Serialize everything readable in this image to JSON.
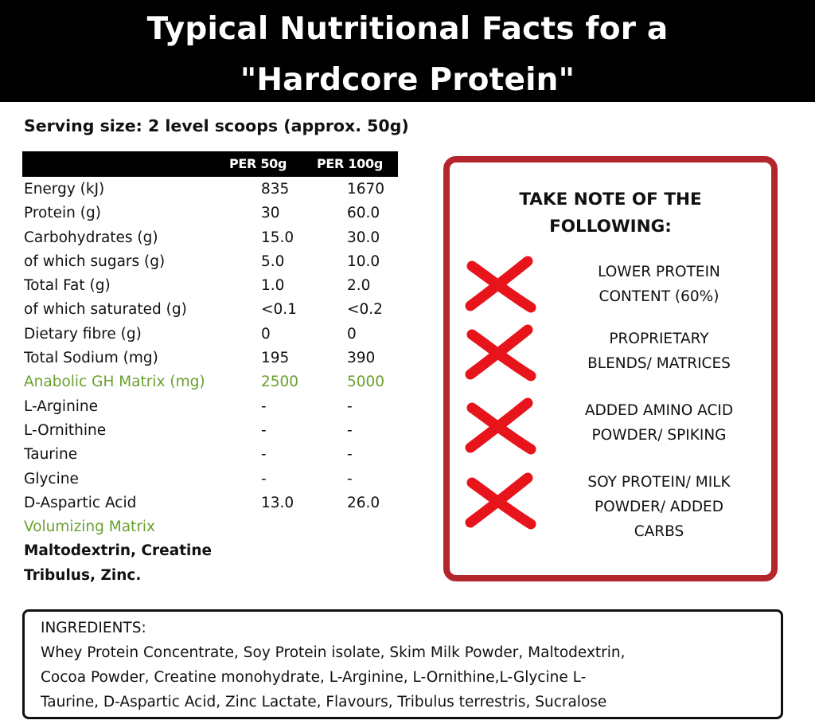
{
  "header": {
    "line1": "Typical Nutritional Facts for a",
    "line2": "\"Hardcore Protein\""
  },
  "serving": "Serving size: 2 level scoops (approx. 50g)",
  "table": {
    "headers": [
      "PER 50g",
      "PER 100g"
    ],
    "rows": [
      {
        "name": "Energy (kJ)",
        "per50": "835",
        "per100": "1670"
      },
      {
        "name": "Protein (g)",
        "per50": "30",
        "per100": "60.0"
      },
      {
        "name": "Carbohydrates (g)",
        "per50": "15.0",
        "per100": "30.0"
      },
      {
        "name": "of which sugars (g)",
        "per50": "5.0",
        "per100": "10.0"
      },
      {
        "name": "Total Fat (g)",
        "per50": "1.0",
        "per100": "2.0"
      },
      {
        "name": "of which saturated (g)",
        "per50": "<0.1",
        "per100": "<0.2"
      },
      {
        "name": "Dietary fibre (g)",
        "per50": "0",
        "per100": "0"
      },
      {
        "name": "Total Sodium (mg)",
        "per50": "195",
        "per100": "390"
      },
      {
        "name": "Anabolic GH Matrix (mg)",
        "per50": "2500",
        "per100": "5000"
      },
      {
        "name": "L-Arginine",
        "per50": "-",
        "per100": "-"
      },
      {
        "name": "L-Ornithine",
        "per50": "-",
        "per100": "-"
      },
      {
        "name": "Taurine",
        "per50": "-",
        "per100": "-"
      },
      {
        "name": "Glycine",
        "per50": "-",
        "per100": "-"
      },
      {
        "name": "D-Aspartic Acid",
        "per50": "13.0",
        "per100": "26.0"
      },
      {
        "name": "Volumizing Matrix",
        "per50": "",
        "per100": ""
      },
      {
        "name": "Maltodextrin, Creatine",
        "per50": "",
        "per100": ""
      },
      {
        "name": "Tribulus, Zinc.",
        "per50": "",
        "per100": ""
      }
    ]
  },
  "colors": {
    "matrix_green": "#6aa02e",
    "note_border": "#b3262b",
    "cross_red": "#e8141b"
  },
  "note": {
    "title_line1": "TAKE NOTE OF THE",
    "title_line2": "FOLLOWING:",
    "items": [
      {
        "icon": "red-cross-icon",
        "line1": "LOWER PROTEIN",
        "line2": "CONTENT (60%)",
        "line3": ""
      },
      {
        "icon": "red-cross-icon",
        "line1": "PROPRIETARY",
        "line2": "BLENDS/ MATRICES",
        "line3": ""
      },
      {
        "icon": "red-cross-icon",
        "line1": "ADDED AMINO ACID",
        "line2": "POWDER/ SPIKING",
        "line3": ""
      },
      {
        "icon": "red-cross-icon",
        "line1": "SOY PROTEIN/ MILK",
        "line2": "POWDER/ ADDED",
        "line3": "CARBS"
      }
    ]
  },
  "ingredients": {
    "heading": "INGREDIENTS:",
    "lines": [
      "Whey Protein Concentrate, Soy Protein isolate, Skim Milk Powder, Maltodextrin,",
      "Cocoa Powder, Creatine monohydrate, L-Arginine, L-Ornithine,L-Glycine L-",
      "Taurine, D-Aspartic Acid, Zinc Lactate, Flavours, Tribulus terrestris,  Sucralose"
    ]
  }
}
